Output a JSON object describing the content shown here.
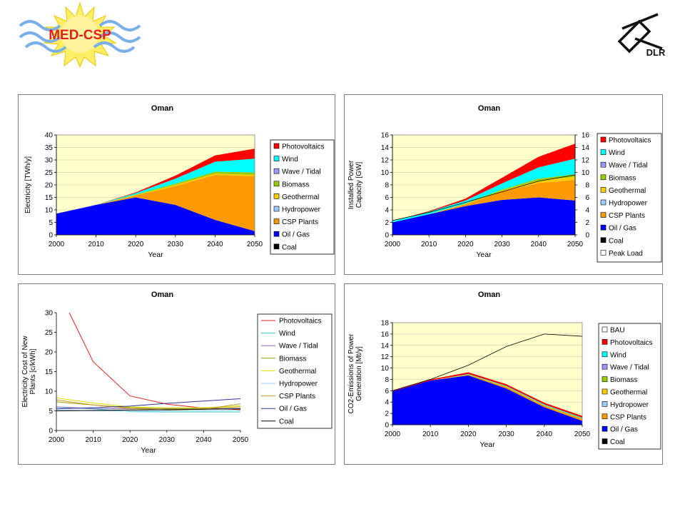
{
  "logo_left": {
    "text": "MED-CSP"
  },
  "logo_right": {
    "text": "DLR"
  },
  "colors": {
    "Photovoltaics": "#ff0000",
    "Wind": "#00ffff",
    "Wave / Tidal": "#9999ff",
    "Biomass": "#99cc00",
    "Geothermal": "#ffcc00",
    "Hydropower": "#99ccff",
    "CSP Plants": "#ff9900",
    "Oil / Gas": "#0000ff",
    "Coal": "#000000",
    "Peak Load": "#ffffff",
    "BAU": "#ffffff",
    "plot_bg": "#ffffcc"
  },
  "chart_data": [
    {
      "id": "electricity",
      "type": "area",
      "title": "Oman",
      "xlabel": "Year",
      "ylabel": "Electricity [TWh/y]",
      "x": [
        2000,
        2010,
        2020,
        2030,
        2040,
        2050
      ],
      "ylim": [
        0,
        40
      ],
      "yticks": [
        0,
        5,
        10,
        15,
        20,
        25,
        30,
        35,
        40
      ],
      "legend": [
        "Photovoltaics",
        "Wind",
        "Wave / Tidal",
        "Biomass",
        "Geothermal",
        "Hydropower",
        "CSP Plants",
        "Oil / Gas",
        "Coal"
      ],
      "series": [
        {
          "name": "Coal",
          "values": [
            0,
            0,
            0,
            0,
            0,
            0
          ]
        },
        {
          "name": "Oil / Gas",
          "values": [
            8.5,
            12,
            15,
            12,
            6,
            1.5
          ]
        },
        {
          "name": "CSP Plants",
          "values": [
            0,
            0,
            0.7,
            7.5,
            18,
            22
          ]
        },
        {
          "name": "Hydropower",
          "values": [
            0,
            0,
            0,
            0,
            0,
            0
          ]
        },
        {
          "name": "Geothermal",
          "values": [
            0,
            0,
            0.2,
            0.5,
            0.5,
            0.5
          ]
        },
        {
          "name": "Biomass",
          "values": [
            0,
            0,
            0.2,
            0.5,
            0.8,
            1.0
          ]
        },
        {
          "name": "Wave / Tidal",
          "values": [
            0,
            0,
            0,
            0,
            0,
            0
          ]
        },
        {
          "name": "Wind",
          "values": [
            0,
            0,
            0.6,
            2.0,
            4.0,
            5.5
          ]
        },
        {
          "name": "Photovoltaics",
          "values": [
            0,
            0,
            0.3,
            1.2,
            2.5,
            4.0
          ]
        }
      ]
    },
    {
      "id": "capacity",
      "type": "area",
      "title": "Oman",
      "xlabel": "Year",
      "ylabel": "Installed Power Capacity [GW]",
      "x": [
        2000,
        2010,
        2020,
        2030,
        2040,
        2050
      ],
      "ylim": [
        0,
        16
      ],
      "yticks": [
        0,
        2,
        4,
        6,
        8,
        10,
        12,
        14,
        16
      ],
      "right_axis": true,
      "legend": [
        "Photovoltaics",
        "Wind",
        "Wave / Tidal",
        "Biomass",
        "Geothermal",
        "Hydropower",
        "CSP Plants",
        "Oil / Gas",
        "Coal",
        "Peak Load"
      ],
      "series": [
        {
          "name": "Coal",
          "values": [
            0,
            0,
            0,
            0,
            0,
            0
          ]
        },
        {
          "name": "Oil / Gas",
          "values": [
            2.0,
            3.3,
            4.6,
            5.6,
            6.0,
            5.5
          ]
        },
        {
          "name": "CSP Plants",
          "values": [
            0,
            0,
            0.3,
            1.3,
            2.3,
            3.3
          ]
        },
        {
          "name": "Hydropower",
          "values": [
            0,
            0,
            0,
            0,
            0,
            0
          ]
        },
        {
          "name": "Geothermal",
          "values": [
            0,
            0,
            0.05,
            0.2,
            0.4,
            0.5
          ]
        },
        {
          "name": "Biomass",
          "values": [
            0,
            0,
            0.05,
            0.15,
            0.3,
            0.4
          ]
        },
        {
          "name": "Wave / Tidal",
          "values": [
            0,
            0,
            0,
            0,
            0,
            0
          ]
        },
        {
          "name": "Wind",
          "values": [
            0.2,
            0.4,
            0.5,
            1.0,
            1.8,
            2.5
          ]
        },
        {
          "name": "Photovoltaics",
          "values": [
            0,
            0.1,
            0.3,
            0.9,
            1.7,
            2.4
          ]
        }
      ],
      "lines": [
        {
          "name": "Peak Load",
          "values": [
            2.3,
            3.6,
            5.2,
            6.9,
            8.6,
            9.6
          ]
        }
      ]
    },
    {
      "id": "cost",
      "type": "line",
      "title": "Oman",
      "xlabel": "Year",
      "ylabel": "Electricity Cost of New Plants [c/kWh]",
      "x": [
        2000,
        2010,
        2020,
        2030,
        2040,
        2050
      ],
      "ylim": [
        0,
        30
      ],
      "yticks": [
        0,
        5,
        10,
        15,
        20,
        25,
        30
      ],
      "legend": [
        "Photovoltaics",
        "Wind",
        "Wave / Tidal",
        "Biomass",
        "Geothermal",
        "Hydropower",
        "CSP Plants",
        "Oil / Gas",
        "Coal"
      ],
      "series": [
        {
          "name": "Photovoltaics",
          "color": "#dd2222",
          "x": [
            2003.5,
            2010,
            2020,
            2030,
            2040,
            2050
          ],
          "values": [
            30,
            17.5,
            8.8,
            6.7,
            5.7,
            5.3
          ]
        },
        {
          "name": "Wind",
          "color": "#33cccc",
          "values": [
            5.9,
            5.5,
            4.8,
            4.7,
            4.7,
            4.7
          ]
        },
        {
          "name": "Wave / Tidal",
          "color": "#8866bb",
          "values": [
            6.0,
            5.6,
            5.5,
            5.6,
            5.5,
            5.6
          ]
        },
        {
          "name": "Biomass",
          "color": "#999900",
          "values": [
            7.3,
            6.5,
            5.8,
            5.5,
            5.6,
            6.0
          ]
        },
        {
          "name": "Geothermal",
          "color": "#dddd00",
          "values": [
            8.3,
            7.0,
            6.0,
            5.8,
            5.8,
            6.3
          ]
        },
        {
          "name": "Hydropower",
          "color": "#99ccee",
          "values": [
            5.3,
            5.0,
            4.9,
            5.0,
            5.0,
            5.1
          ]
        },
        {
          "name": "CSP Plants",
          "color": "#cc9933",
          "values": [
            7.8,
            6.5,
            5.6,
            5.2,
            5.4,
            6.8
          ]
        },
        {
          "name": "Oil / Gas",
          "color": "#333399",
          "values": [
            5.5,
            5.8,
            6.2,
            6.9,
            7.5,
            8.1
          ]
        },
        {
          "name": "Coal",
          "color": "#000000",
          "values": [
            5.0,
            5.1,
            5.2,
            5.3,
            5.4,
            5.5
          ]
        }
      ]
    },
    {
      "id": "co2",
      "type": "area",
      "title": "Oman",
      "xlabel": "Year",
      "ylabel": "CO2-Emissions of Power Generation [Mt/y]",
      "x": [
        2000,
        2010,
        2020,
        2030,
        2040,
        2050
      ],
      "ylim": [
        0,
        18
      ],
      "yticks": [
        0,
        2,
        4,
        6,
        8,
        10,
        12,
        14,
        16,
        18
      ],
      "legend": [
        "BAU",
        "Photovoltaics",
        "Wind",
        "Wave / Tidal",
        "Biomass",
        "Geothermal",
        "Hydropower",
        "CSP Plants",
        "Oil / Gas",
        "Coal"
      ],
      "series": [
        {
          "name": "Coal",
          "values": [
            0,
            0,
            0,
            0,
            0,
            0
          ]
        },
        {
          "name": "Oil / Gas",
          "values": [
            5.9,
            7.8,
            8.7,
            6.4,
            3.1,
            0.7
          ]
        },
        {
          "name": "CSP Plants",
          "values": [
            0,
            0,
            0.12,
            0.3,
            0.3,
            0.35
          ]
        },
        {
          "name": "Hydropower",
          "values": [
            0,
            0,
            0,
            0,
            0,
            0
          ]
        },
        {
          "name": "Geothermal",
          "values": [
            0,
            0,
            0,
            0,
            0,
            0
          ]
        },
        {
          "name": "Biomass",
          "values": [
            0,
            0,
            0.05,
            0.06,
            0.06,
            0.06
          ]
        },
        {
          "name": "Wave / Tidal",
          "values": [
            0,
            0,
            0,
            0,
            0,
            0
          ]
        },
        {
          "name": "Wind",
          "values": [
            0,
            0,
            0.08,
            0.1,
            0.12,
            0.14
          ]
        },
        {
          "name": "Photovoltaics",
          "values": [
            0.15,
            0.2,
            0.3,
            0.3,
            0.3,
            0.3
          ]
        }
      ],
      "lines": [
        {
          "name": "BAU",
          "values": [
            6.0,
            8.0,
            10.5,
            13.8,
            16.0,
            15.6
          ]
        }
      ]
    }
  ]
}
